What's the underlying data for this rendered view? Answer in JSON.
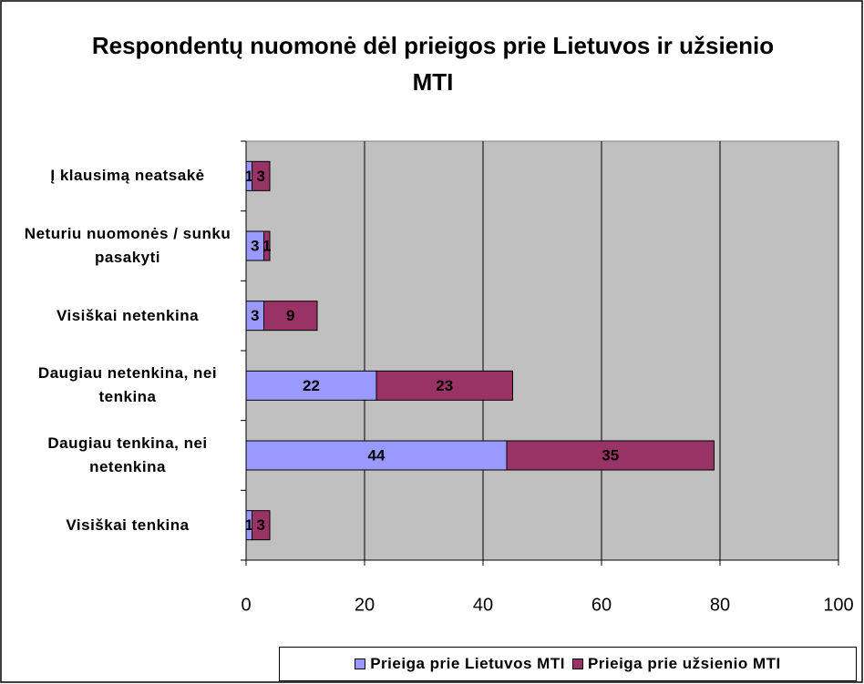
{
  "chart_data": {
    "type": "stacked_bar_horizontal",
    "title": "Respondentų nuomonė dėl prieigos prie Lietuvos ir užsienio MTI",
    "categories": [
      "Į klausimą neatsakė",
      "Neturiu nuomonės / sunku pasakyti",
      "Visiškai netenkina",
      "Daugiau netenkina, nei tenkina",
      "Daugiau tenkina, nei netenkina",
      "Visiškai tenkina"
    ],
    "series": [
      {
        "name": "Prieiga prie Lietuvos MTI",
        "color": "#9999ff",
        "values": [
          1,
          3,
          3,
          22,
          44,
          1
        ]
      },
      {
        "name": "Prieiga prie užsienio MTI",
        "color": "#993366",
        "values": [
          3,
          1,
          9,
          23,
          35,
          3
        ]
      }
    ],
    "xlim": [
      0,
      100
    ],
    "xticks": [
      0,
      20,
      40,
      60,
      80,
      100
    ],
    "grid": true,
    "legend": "bottom"
  }
}
